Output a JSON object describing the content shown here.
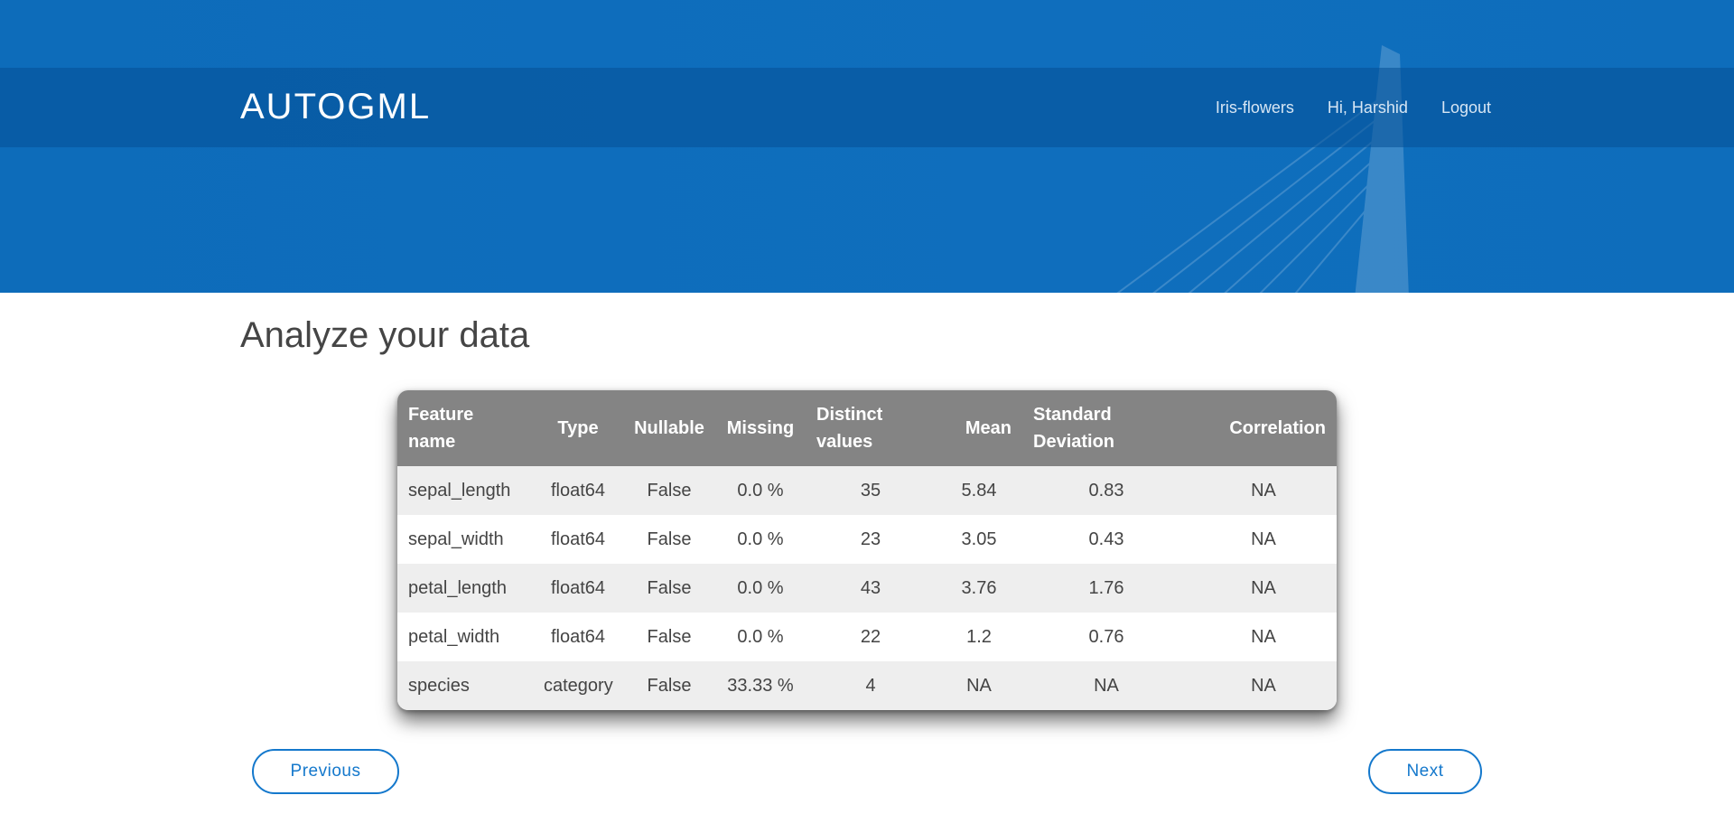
{
  "header": {
    "brand": "AUTOGML",
    "nav": [
      {
        "label": "Iris-flowers"
      },
      {
        "label": "Hi, Harshid"
      },
      {
        "label": "Logout"
      }
    ]
  },
  "main": {
    "title": "Analyze your data",
    "table": {
      "columns": [
        "Feature name",
        "Type",
        "Nullable",
        "Missing",
        "Distinct values",
        "Mean",
        "Standard Deviation",
        "Correlation"
      ],
      "rows": [
        [
          "sepal_length",
          "float64",
          "False",
          "0.0 %",
          "35",
          "5.84",
          "0.83",
          "NA"
        ],
        [
          "sepal_width",
          "float64",
          "False",
          "0.0 %",
          "23",
          "3.05",
          "0.43",
          "NA"
        ],
        [
          "petal_length",
          "float64",
          "False",
          "0.0 %",
          "43",
          "3.76",
          "1.76",
          "NA"
        ],
        [
          "petal_width",
          "float64",
          "False",
          "0.0 %",
          "22",
          "1.2",
          "0.76",
          "NA"
        ],
        [
          "species",
          "category",
          "False",
          "33.33 %",
          "4",
          "NA",
          "NA",
          "NA"
        ]
      ]
    }
  },
  "buttons": {
    "previous": "Previous",
    "next": "Next"
  },
  "colors": {
    "hero": "#0e6dbb",
    "table_header": "#848484",
    "accent": "#1478cc"
  }
}
